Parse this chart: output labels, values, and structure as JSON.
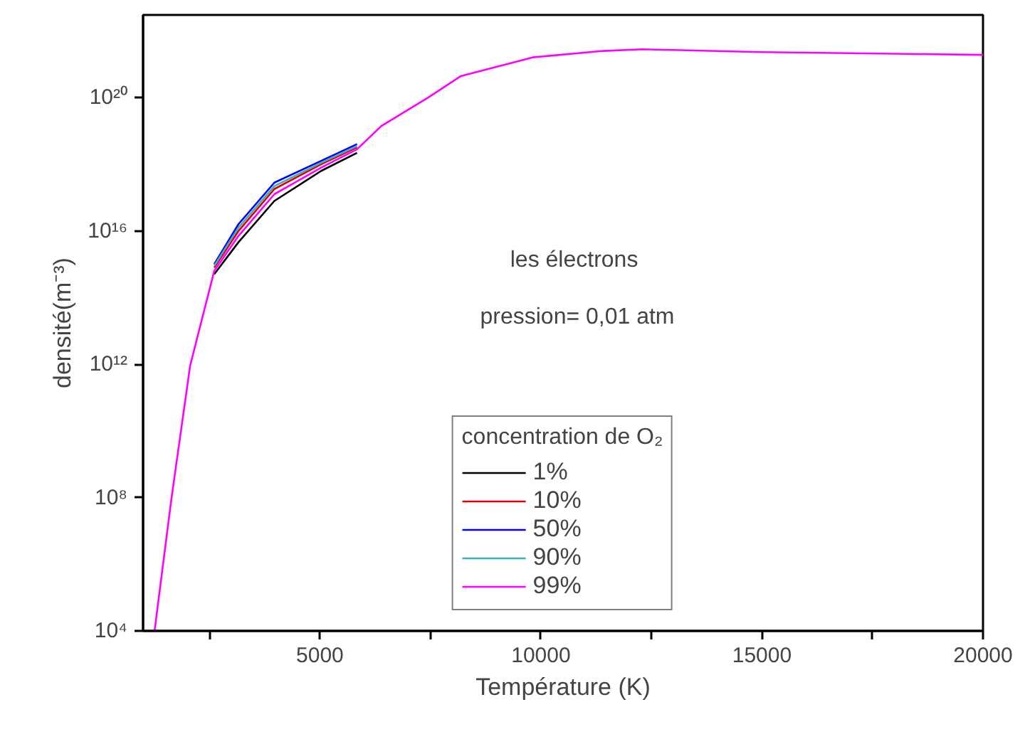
{
  "chart_data": {
    "type": "line",
    "xlabel": "Température (K)",
    "ylabel": "densité(m⁻³)",
    "annotations": [
      "les  électrons",
      "pression= 0,01 atm"
    ],
    "legend_title": "concentration de O₂",
    "legend": "bottom",
    "grid": false,
    "log": "y",
    "line_style": "solid",
    "xlim": [
      1000,
      20000
    ],
    "ylim": [
      10000,
      3e+22
    ],
    "xticks": [
      {
        "value": 2500,
        "label": null
      },
      5000,
      {
        "value": 7500,
        "label": null
      },
      10000,
      {
        "value": 12500,
        "label": null
      },
      15000,
      {
        "value": 17500,
        "label": null
      },
      20000
    ],
    "yticks": [
      {
        "value": 10000.0,
        "label": "10⁴"
      },
      {
        "value": 100000000.0,
        "label": "10⁸"
      },
      {
        "value": 1000000000000.0,
        "label": "10¹²"
      },
      {
        "value": 1e+16,
        "label": "10¹⁶"
      },
      {
        "value": 1e+20,
        "label": "10²⁰"
      }
    ],
    "x": [
      1260,
      1645,
      2065,
      2610,
      3160,
      3970,
      5030,
      5840,
      6390,
      7450,
      8190,
      9810,
      11420,
      12290,
      15000,
      20000
    ],
    "series": [
      {
        "name": "1%",
        "color": "#000000",
        "x": [
          2610,
          3160,
          3970,
          5030,
          5840
        ],
        "values": [
          500000000000000.0,
          4600000000000000.0,
          7.9e+16,
          6.3e+17,
          2.2e+18
        ]
      },
      {
        "name": "10%",
        "color": "#e00000",
        "x": [
          2610,
          3160,
          3970,
          5030,
          5840
        ],
        "values": [
          790000000000000.0,
          1e+16,
          1.8e+17,
          1e+18,
          3.2e+18
        ]
      },
      {
        "name": "50%",
        "color": "#0000ff",
        "x": [
          2610,
          3160,
          3970,
          5030,
          5840
        ],
        "values": [
          1000000000000000.0,
          1.6e+16,
          2.8e+17,
          1.26e+18,
          4e+18
        ]
      },
      {
        "name": "90%",
        "color": "#3cb0b0",
        "x": [
          2610,
          3160,
          3970,
          5030,
          5840
        ],
        "values": [
          890000000000000.0,
          1.26e+16,
          2.2e+17,
          1.1e+18,
          3.5e+18
        ]
      },
      {
        "name": "99%",
        "color": "#ff00ff",
        "values": [
          10000.0,
          100000000.0,
          910000000000.0,
          630000000000000.0,
          7100000000000000.0,
          1.26e+17,
          7.9e+17,
          2.8e+18,
          1.4e+19,
          1e+20,
          4.4e+20,
          1.6e+21,
          2.5e+21,
          2.8e+21,
          2.3e+21,
          1.9e+21
        ]
      }
    ]
  }
}
